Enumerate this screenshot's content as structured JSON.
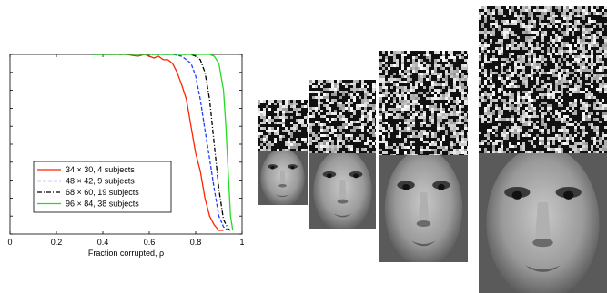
{
  "chart_data": {
    "type": "line",
    "title": "",
    "xlabel": "Fraction corrupted, ρ",
    "ylabel": "",
    "xlim": [
      0,
      1
    ],
    "ylim": [
      0,
      1
    ],
    "xticks": [
      "0",
      "0.2",
      "0.4",
      "0.6",
      "0.8",
      "1"
    ],
    "yticks_shown_as_labels": false,
    "grid": false,
    "legend_position": "lower-left",
    "series": [
      {
        "name": "34 × 30, 4 subjects",
        "color": "#ff2200",
        "style": "solid",
        "x": [
          0.35,
          0.5,
          0.55,
          0.58,
          0.6,
          0.62,
          0.64,
          0.66,
          0.68,
          0.7,
          0.72,
          0.74,
          0.76,
          0.78,
          0.8,
          0.82,
          0.84,
          0.86,
          0.88,
          0.9,
          0.92
        ],
        "y": [
          1.0,
          1.0,
          0.99,
          1.0,
          0.99,
          0.98,
          0.99,
          0.97,
          0.97,
          0.95,
          0.9,
          0.83,
          0.75,
          0.6,
          0.45,
          0.35,
          0.2,
          0.1,
          0.05,
          0.02,
          0.02
        ]
      },
      {
        "name": "48 × 42, 9 subjects",
        "color": "#1f3fff",
        "style": "dashed",
        "x": [
          0.35,
          0.6,
          0.7,
          0.74,
          0.76,
          0.78,
          0.8,
          0.82,
          0.84,
          0.86,
          0.88,
          0.9,
          0.92,
          0.94
        ],
        "y": [
          1.0,
          1.0,
          1.0,
          0.99,
          0.97,
          0.95,
          0.88,
          0.75,
          0.58,
          0.42,
          0.25,
          0.1,
          0.04,
          0.02
        ]
      },
      {
        "name": "68 × 60, 19 subjects",
        "color": "#000000",
        "style": "dashdot",
        "x": [
          0.35,
          0.7,
          0.78,
          0.8,
          0.82,
          0.84,
          0.86,
          0.88,
          0.9,
          0.92,
          0.94,
          0.95
        ],
        "y": [
          1.0,
          1.0,
          1.0,
          0.99,
          0.97,
          0.9,
          0.75,
          0.5,
          0.25,
          0.08,
          0.03,
          0.02
        ]
      },
      {
        "name": "96 × 84, 38 subjects",
        "color": "#22dd22",
        "style": "solid",
        "x": [
          0.35,
          0.8,
          0.86,
          0.88,
          0.9,
          0.92,
          0.93,
          0.94,
          0.95,
          0.96
        ],
        "y": [
          1.0,
          1.0,
          1.0,
          0.99,
          0.95,
          0.8,
          0.6,
          0.35,
          0.1,
          0.02
        ]
      }
    ]
  },
  "images": {
    "thumbnails": [
      {
        "resolution": "34 × 30"
      },
      {
        "resolution": "48 × 42"
      },
      {
        "resolution": "68 × 60"
      },
      {
        "resolution": "96 × 84"
      }
    ]
  }
}
